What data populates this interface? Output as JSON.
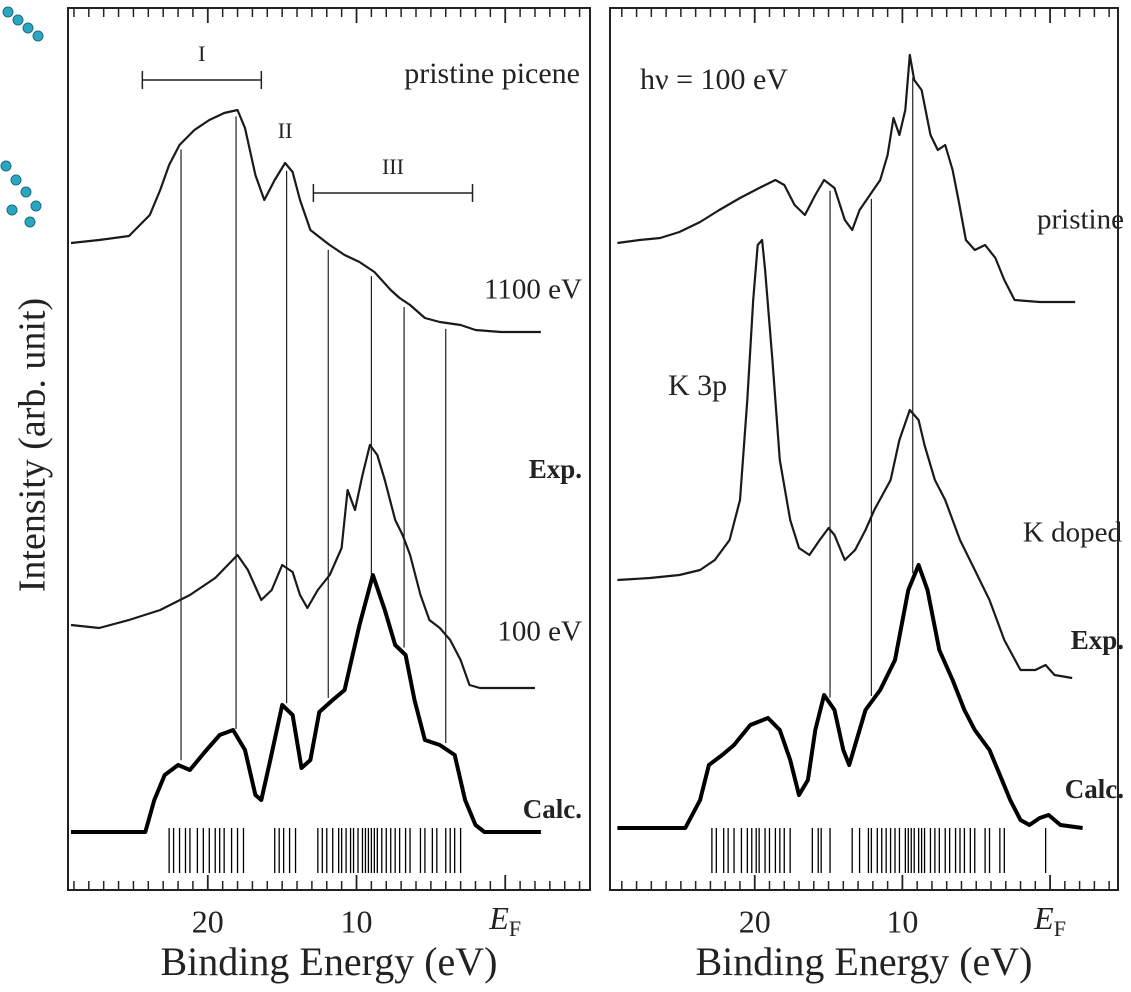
{
  "chart_data": [
    {
      "type": "line",
      "xlabel": "Binding Energy (eV)",
      "ylabel": "Intensity (arb. unit)",
      "xlim": [
        29.4,
        -5.7
      ],
      "ylim": [
        0,
        880
      ],
      "xticks": [
        20,
        10,
        {
          "value": 0,
          "label": "E",
          "sub": "F"
        }
      ],
      "xminor": [
        29,
        28,
        27,
        26,
        25,
        24,
        23,
        22,
        21,
        19,
        18,
        17,
        16,
        15,
        14,
        13,
        12,
        11,
        9,
        8,
        7,
        6,
        5,
        4,
        3,
        2,
        1,
        -1,
        -2,
        -3,
        -4,
        -5
      ],
      "series": [
        {
          "name": "1100 eV",
          "color": "#1a1a1a",
          "x": [
            29.2,
            27.3,
            25.3,
            23.9,
            23.2,
            22.6,
            21.9,
            20.9,
            19.9,
            18.9,
            18.0,
            17.5,
            16.8,
            16.2,
            15.5,
            14.8,
            14.3,
            13.8,
            13.1,
            12.5,
            11.8,
            10.8,
            9.8,
            8.8,
            7.7,
            7.1,
            6.4,
            5.4,
            4.4,
            3.0,
            2.0,
            0.3,
            -2.4
          ],
          "values": [
            645,
            648,
            652,
            673,
            698,
            723,
            743,
            758,
            768,
            775,
            778,
            760,
            713,
            688,
            708,
            725,
            716,
            688,
            658,
            651,
            643,
            633,
            626,
            616,
            598,
            590,
            583,
            570,
            566,
            563,
            558,
            556,
            556
          ]
        },
        {
          "name": "100 eV",
          "color": "#1a1a1a",
          "x": [
            29.2,
            27.3,
            25.3,
            23.2,
            21.2,
            19.5,
            18.0,
            17.3,
            16.4,
            15.7,
            15.0,
            14.3,
            13.8,
            13.3,
            12.6,
            11.8,
            11.0,
            10.6,
            10.1,
            9.6,
            9.1,
            8.6,
            8.1,
            7.4,
            6.9,
            6.4,
            5.7,
            5.1,
            4.4,
            3.7,
            3.0,
            2.4,
            1.7,
            -2.0
          ],
          "values": [
            263,
            260,
            268,
            278,
            293,
            310,
            333,
            318,
            288,
            298,
            323,
            316,
            293,
            280,
            298,
            313,
            340,
            398,
            378,
            413,
            443,
            433,
            408,
            368,
            353,
            333,
            293,
            268,
            260,
            248,
            228,
            203,
            200,
            200
          ]
        },
        {
          "name": "Calc.",
          "color": "#000000",
          "x": [
            29.2,
            24.2,
            23.6,
            22.9,
            22.0,
            21.2,
            20.2,
            19.2,
            18.3,
            17.5,
            16.8,
            16.4,
            15.8,
            15.0,
            14.3,
            13.7,
            13.1,
            12.5,
            11.6,
            10.8,
            9.8,
            8.9,
            8.1,
            7.4,
            6.7,
            6.1,
            5.4,
            4.4,
            3.4,
            2.7,
            2.0,
            1.4,
            -2.4
          ],
          "values": [
            56,
            56,
            88,
            113,
            123,
            118,
            136,
            153,
            158,
            138,
            93,
            88,
            128,
            183,
            173,
            120,
            128,
            176,
            188,
            198,
            263,
            313,
            278,
            243,
            233,
            188,
            148,
            143,
            133,
            88,
            63,
            56,
            56
          ]
        }
      ],
      "sticks": [
        22.6,
        22.3,
        21.9,
        21.5,
        21.2,
        20.7,
        20.3,
        19.9,
        19.5,
        19.2,
        18.9,
        18.4,
        18.0,
        17.6,
        15.5,
        15.2,
        14.9,
        14.5,
        14.1,
        12.6,
        12.3,
        12.0,
        11.6,
        11.2,
        11.0,
        10.7,
        10.4,
        10.2,
        9.9,
        9.6,
        9.4,
        9.2,
        9.0,
        8.8,
        8.6,
        8.3,
        8.0,
        7.7,
        7.4,
        7.1,
        6.7,
        6.4,
        5.7,
        5.4,
        4.9,
        4.6,
        4.0,
        3.7,
        3.4,
        3.0
      ],
      "guides": [
        21.8,
        18.1,
        14.7,
        11.9,
        9.0,
        6.8,
        4.0
      ],
      "annotations": [
        {
          "text": "pristine picene"
        },
        {
          "text": "Exp."
        },
        {
          "text": "I",
          "range": [
            24.4,
            16.4
          ]
        },
        {
          "text": "II",
          "x": 14.8
        },
        {
          "text": "III",
          "range": [
            12.9,
            2.2
          ]
        }
      ]
    },
    {
      "type": "line",
      "xlabel": "Binding Energy (eV)",
      "xlim": [
        29.8,
        -4.6
      ],
      "ylim": [
        0,
        880
      ],
      "xticks": [
        20,
        10,
        {
          "value": 0,
          "label": "E",
          "sub": "F"
        }
      ],
      "xminor": [
        29,
        28,
        27,
        26,
        25,
        24,
        23,
        22,
        21,
        19,
        18,
        17,
        16,
        15,
        14,
        13,
        12,
        11,
        9,
        8,
        7,
        6,
        5,
        4,
        3,
        2,
        1,
        -1,
        -2,
        -3,
        -4
      ],
      "series": [
        {
          "name": "pristine",
          "color": "#1a1a1a",
          "x": [
            29.3,
            27.8,
            26.4,
            25.1,
            23.7,
            22.4,
            21.0,
            19.7,
            18.6,
            18.0,
            17.3,
            16.6,
            15.9,
            15.3,
            14.6,
            13.9,
            13.4,
            12.9,
            12.2,
            11.5,
            11.0,
            10.6,
            10.2,
            9.8,
            9.5,
            9.2,
            8.7,
            8.1,
            7.6,
            7.1,
            6.6,
            6.2,
            5.7,
            5.1,
            4.4,
            3.7,
            3.1,
            2.4,
            0.7,
            -1.7
          ],
          "values": [
            645,
            648,
            650,
            656,
            666,
            678,
            690,
            700,
            708,
            703,
            683,
            673,
            693,
            708,
            700,
            668,
            658,
            678,
            693,
            708,
            733,
            770,
            753,
            778,
            833,
            808,
            798,
            753,
            738,
            743,
            718,
            688,
            648,
            638,
            643,
            630,
            608,
            588,
            586,
            586
          ]
        },
        {
          "name": "K doped",
          "color": "#1a1a1a",
          "x": [
            29.3,
            27.1,
            25.1,
            23.7,
            22.7,
            21.7,
            21.0,
            20.5,
            20.1,
            19.8,
            19.5,
            19.3,
            18.8,
            18.3,
            17.6,
            17.0,
            16.3,
            15.6,
            15.0,
            14.6,
            13.9,
            13.2,
            12.5,
            11.9,
            10.8,
            10.2,
            9.5,
            8.9,
            8.5,
            7.8,
            7.1,
            6.1,
            5.1,
            4.1,
            3.1,
            2.0,
            1.0,
            0.3,
            -0.3,
            -1.5
          ],
          "values": [
            308,
            310,
            313,
            318,
            328,
            348,
            388,
            488,
            588,
            643,
            648,
            618,
            528,
            428,
            368,
            340,
            333,
            348,
            360,
            353,
            328,
            338,
            358,
            378,
            408,
            448,
            478,
            468,
            443,
            408,
            388,
            348,
            318,
            288,
            248,
            218,
            218,
            223,
            213,
            210
          ]
        },
        {
          "name": "Calc.",
          "color": "#000000",
          "x": [
            29.3,
            24.7,
            23.7,
            23.1,
            22.2,
            21.4,
            20.3,
            19.1,
            18.3,
            17.6,
            17.0,
            16.4,
            15.9,
            15.3,
            14.6,
            14.0,
            13.6,
            13.0,
            12.5,
            11.5,
            10.5,
            9.6,
            8.9,
            8.3,
            7.5,
            6.6,
            5.8,
            5.1,
            4.1,
            3.4,
            2.7,
            2.0,
            1.4,
            0.7,
            0.1,
            -0.7,
            -2.2
          ],
          "values": [
            60,
            60,
            88,
            123,
            133,
            143,
            163,
            170,
            158,
            128,
            93,
            108,
            158,
            193,
            178,
            138,
            123,
            153,
            178,
            198,
            228,
            298,
            323,
            298,
            238,
            208,
            178,
            158,
            138,
            113,
            88,
            68,
            63,
            70,
            73,
            63,
            60
          ]
        }
      ],
      "sticks": [
        22.9,
        22.6,
        22.1,
        21.8,
        21.4,
        20.9,
        20.5,
        20.2,
        19.9,
        19.7,
        19.3,
        19.0,
        18.6,
        18.3,
        18.0,
        17.6,
        16.1,
        15.7,
        15.5,
        14.9,
        13.4,
        12.9,
        12.3,
        12.1,
        11.7,
        11.4,
        11.1,
        10.8,
        10.5,
        10.2,
        9.8,
        9.6,
        9.4,
        9.2,
        8.9,
        8.7,
        8.5,
        8.1,
        7.8,
        7.5,
        7.1,
        6.8,
        6.4,
        6.1,
        5.8,
        5.4,
        5.1,
        4.4,
        4.1,
        3.4,
        3.1,
        0.3
      ],
      "guides": [
        14.9,
        12.1,
        9.3
      ],
      "annotations": [
        {
          "text": "hν = 100 eV"
        },
        {
          "text": "K 3p"
        },
        {
          "text": "Exp."
        }
      ]
    }
  ]
}
